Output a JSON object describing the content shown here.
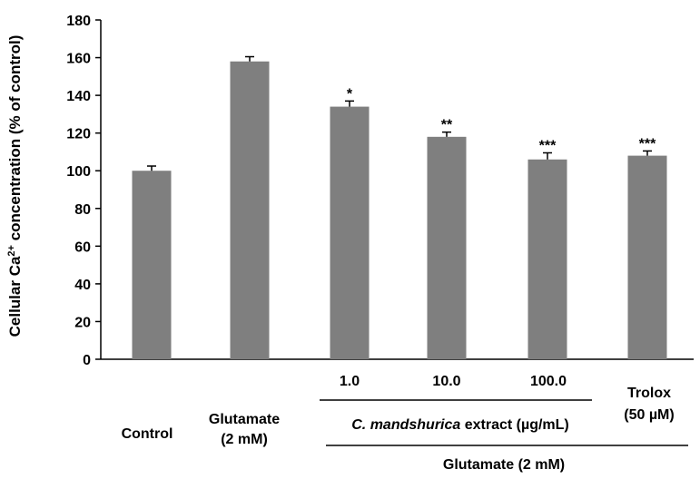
{
  "chart_data": {
    "type": "bar",
    "ylabel": {
      "prefix": "Cellular Ca",
      "superscript": "2+",
      "suffix": " concentration (% of control)"
    },
    "ylim": [
      0,
      180
    ],
    "yticks": [
      "0",
      "20",
      "40",
      "60",
      "80",
      "100",
      "120",
      "140",
      "160",
      "180"
    ],
    "categories": [
      "Control",
      "Glutamate (2 mM)",
      "1.0",
      "10.0",
      "100.0",
      "Trolox (50 µM)"
    ],
    "values": [
      100,
      158,
      134,
      118,
      106,
      108
    ],
    "errors": [
      2.5,
      2.5,
      3,
      2.5,
      3.5,
      2.5
    ],
    "significance": [
      "",
      "",
      "*",
      "**",
      "***",
      "***"
    ],
    "bar_color": "#7f7f7f",
    "grid": false,
    "category_labels": {
      "control": "Control",
      "glutamate_line1": "Glutamate",
      "glutamate_line2": "(2 mM)",
      "dose1": "1.0",
      "dose2": "10.0",
      "dose3": "100.0",
      "trolox_line1": "Trolox",
      "trolox_line2": "(50 µM)"
    },
    "group_labels": {
      "extract_italic": "C. mandshurica",
      "extract_rest": " extract (µg/mL)",
      "glutamate": "Glutamate (2 mM)"
    }
  }
}
